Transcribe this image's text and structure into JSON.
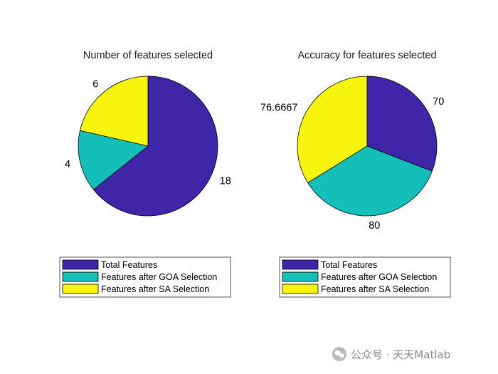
{
  "chart_data": [
    {
      "type": "pie",
      "title": "Number of features selected",
      "categories": [
        "Total Features",
        "Features after GOA Selection",
        "Features after SA Selection"
      ],
      "values": [
        18,
        4,
        6
      ],
      "labels": [
        "18",
        "4",
        "6"
      ],
      "colors": [
        "#3f26a9",
        "#13bfb8",
        "#f7f50d"
      ],
      "legend_position": "below"
    },
    {
      "type": "pie",
      "title": "Accuracy for features selected",
      "categories": [
        "Total Features",
        "Features after GOA Selection",
        "Features after SA Selection"
      ],
      "values": [
        70,
        80,
        76.6667
      ],
      "labels": [
        "70",
        "80",
        "76.6667"
      ],
      "colors": [
        "#3f26a9",
        "#13bfb8",
        "#f7f50d"
      ],
      "legend_position": "below"
    }
  ],
  "watermark": {
    "text": "公众号 · 天天Matlab",
    "icon": "wechat-icon"
  }
}
